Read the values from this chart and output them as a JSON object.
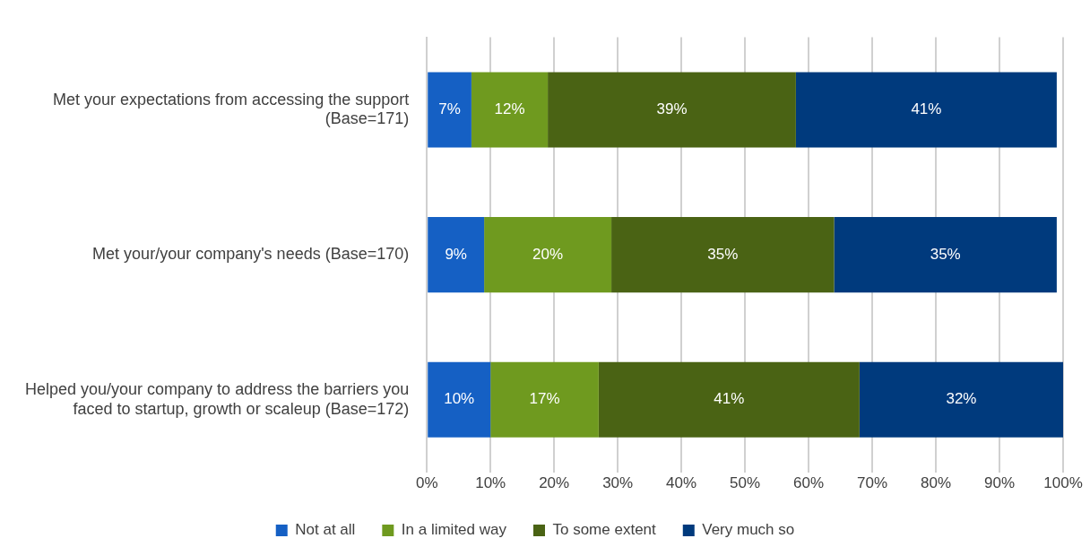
{
  "chart_data": {
    "type": "bar",
    "orientation": "horizontal",
    "stacked": true,
    "categories": [
      "Met your expectations from accessing the support (Base=171)",
      "Met your/your company's needs (Base=170)",
      "Helped you/your company to address the barriers you faced to startup, growth or scaleup (Base=172)"
    ],
    "series": [
      {
        "name": "Not at all",
        "color": "#1560c4",
        "values": [
          7,
          9,
          10
        ],
        "value_labels": [
          "7%",
          "9%",
          "10%"
        ]
      },
      {
        "name": "In a limited way",
        "color": "#6f9a1f",
        "values": [
          12,
          20,
          17
        ],
        "value_labels": [
          "12%",
          "20%",
          "17%"
        ]
      },
      {
        "name": "To some extent",
        "color": "#4a6314",
        "values": [
          39,
          35,
          41
        ],
        "value_labels": [
          "39%",
          "35%",
          "41%"
        ]
      },
      {
        "name": "Very much so",
        "color": "#003a7d",
        "values": [
          41,
          35,
          32
        ],
        "value_labels": [
          "41%",
          "35%",
          "32%"
        ]
      }
    ],
    "xlim": [
      0,
      100
    ],
    "xticks": [
      {
        "value": 0,
        "label": "0%"
      },
      {
        "value": 10,
        "label": "10%"
      },
      {
        "value": 20,
        "label": "20%"
      },
      {
        "value": 30,
        "label": "30%"
      },
      {
        "value": 40,
        "label": "40%"
      },
      {
        "value": 50,
        "label": "50%"
      },
      {
        "value": 60,
        "label": "60%"
      },
      {
        "value": 70,
        "label": "70%"
      },
      {
        "value": 80,
        "label": "80%"
      },
      {
        "value": 90,
        "label": "90%"
      },
      {
        "value": 100,
        "label": "100%"
      }
    ],
    "grid": "x",
    "legend": "bottom"
  }
}
